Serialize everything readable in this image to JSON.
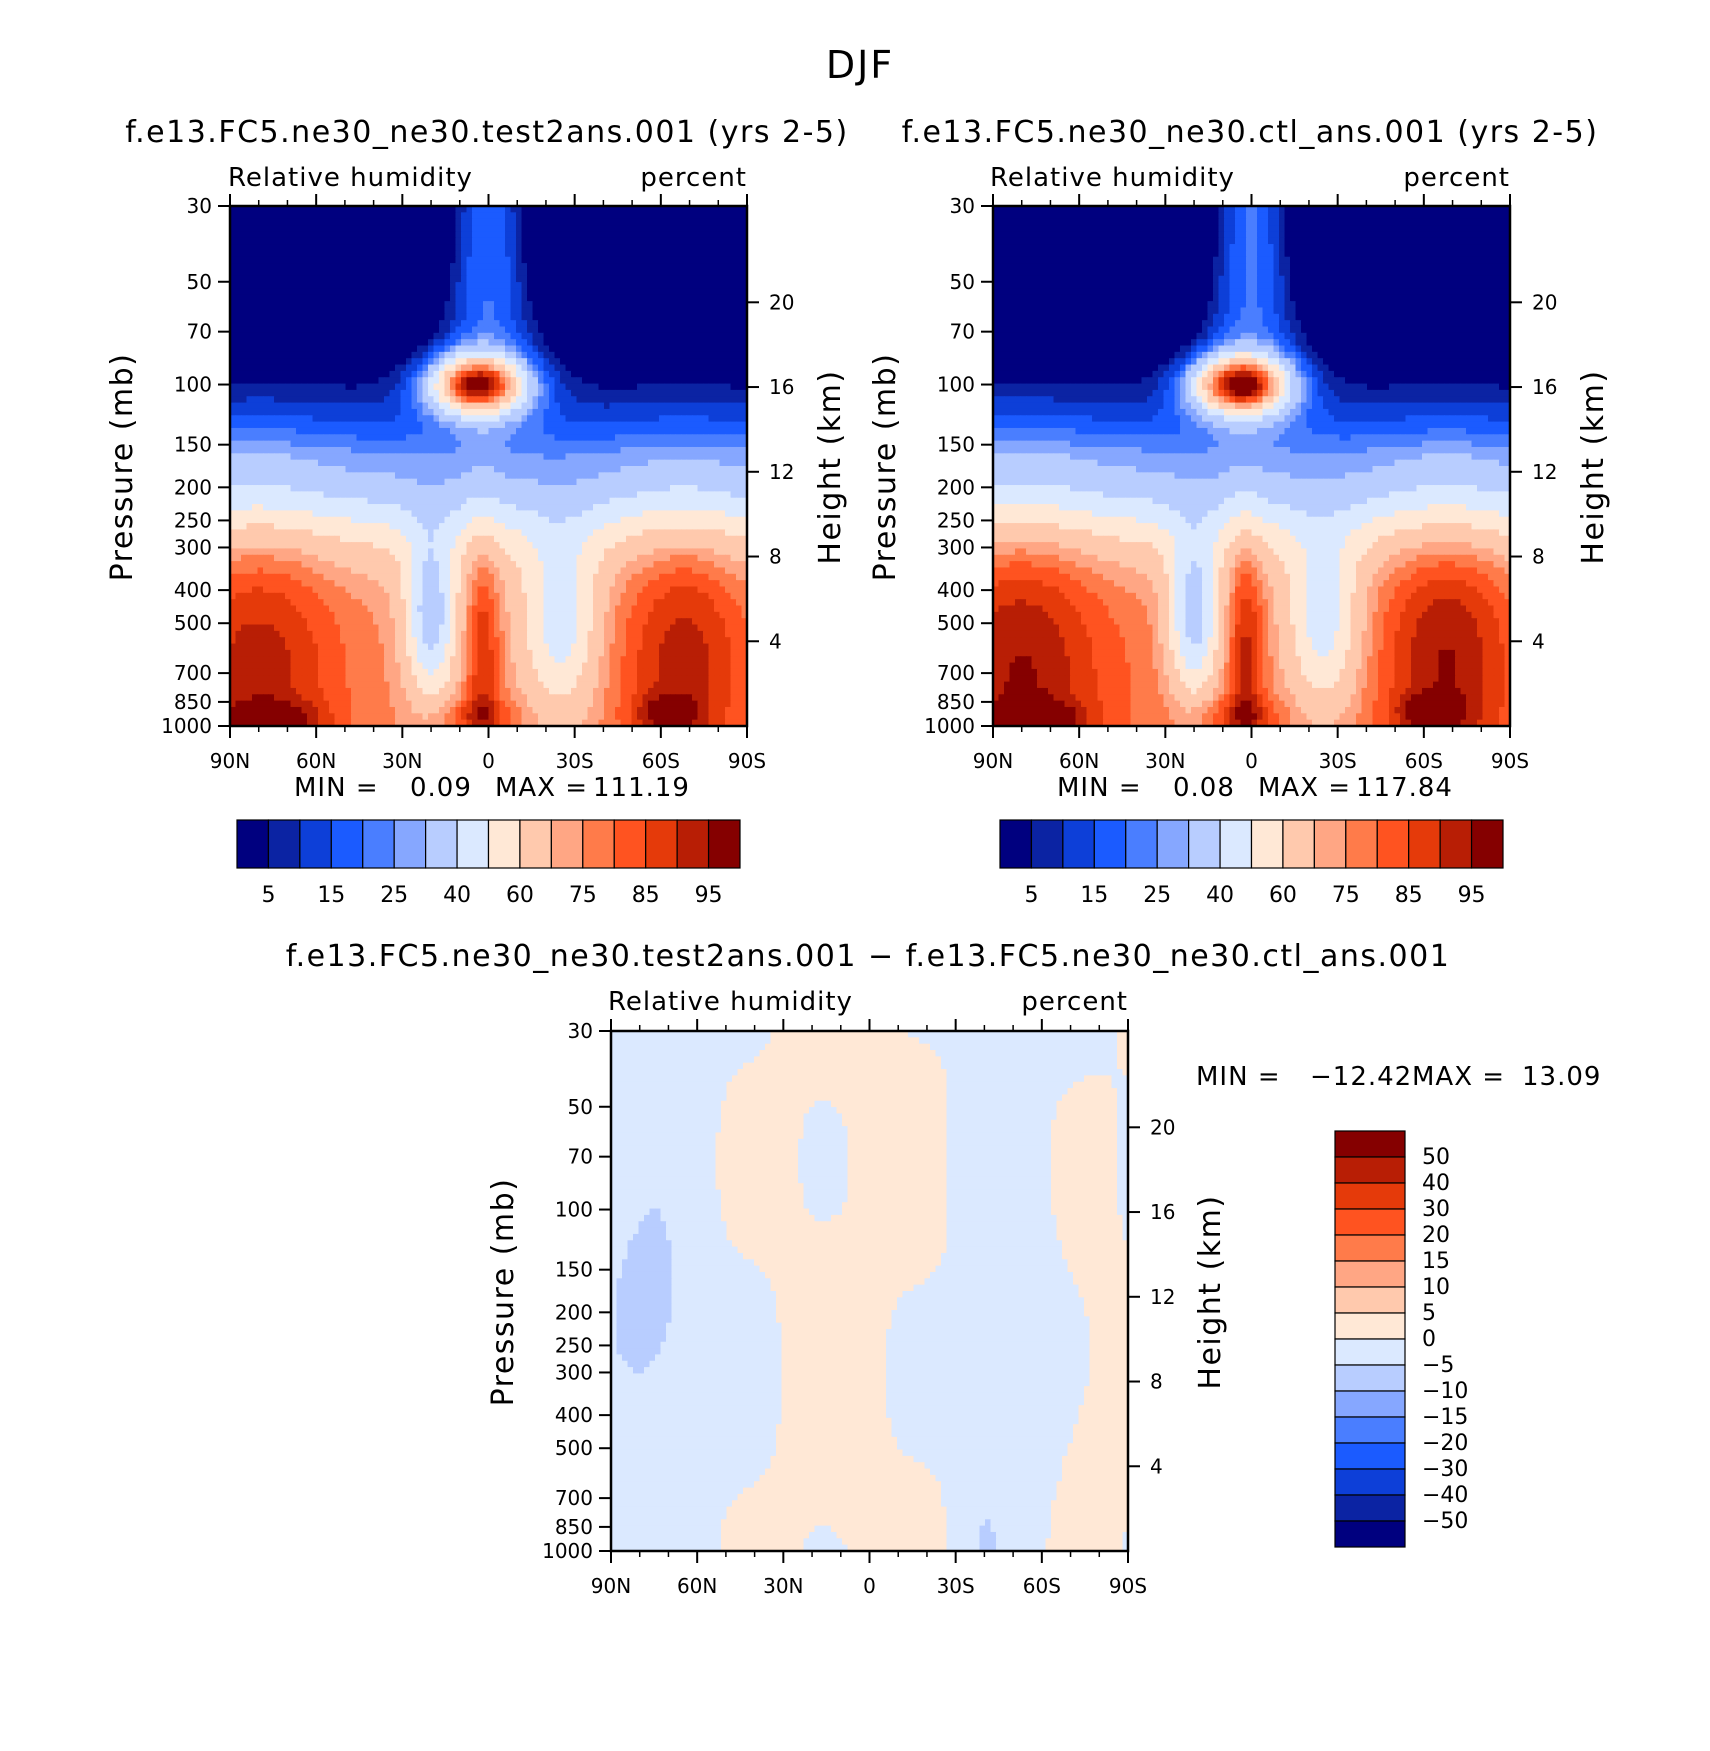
{
  "figure": {
    "title": "DJF"
  },
  "chart_data": [
    {
      "type": "heatmap",
      "id": "test",
      "title": "f.e13.FC5.ne30_ne30.test2ans.001 (yrs 2-5)",
      "left_subtitle": "Relative humidity",
      "right_subtitle": "percent",
      "ylabel": "Pressure (mb)",
      "ylabel_right": "Height (km)",
      "x_ticks": [
        "90N",
        "60N",
        "30N",
        "0",
        "30S",
        "60S",
        "90S"
      ],
      "x_range": [
        90,
        -90
      ],
      "y_ticks": [
        30,
        50,
        70,
        100,
        150,
        200,
        250,
        300,
        400,
        500,
        700,
        850,
        1000
      ],
      "y_range": [
        30,
        1000
      ],
      "height_ticks": [
        20,
        16,
        12,
        8,
        4
      ],
      "stats": {
        "min_label": "MIN =",
        "min": "0.09",
        "max_label": "MAX =",
        "max": "111.19"
      },
      "field_max": 111.19,
      "field_min": 0.09
    },
    {
      "type": "heatmap",
      "id": "ctl",
      "title": "f.e13.FC5.ne30_ne30.ctl_ans.001 (yrs 2-5)",
      "left_subtitle": "Relative humidity",
      "right_subtitle": "percent",
      "ylabel": "Pressure (mb)",
      "ylabel_right": "Height (km)",
      "x_ticks": [
        "90N",
        "60N",
        "30N",
        "0",
        "30S",
        "60S",
        "90S"
      ],
      "x_range": [
        90,
        -90
      ],
      "y_ticks": [
        30,
        50,
        70,
        100,
        150,
        200,
        250,
        300,
        400,
        500,
        700,
        850,
        1000
      ],
      "y_range": [
        30,
        1000
      ],
      "height_ticks": [
        20,
        16,
        12,
        8,
        4
      ],
      "stats": {
        "min_label": "MIN =",
        "min": "0.08",
        "max_label": "MAX =",
        "max": "117.84"
      },
      "field_max": 117.84,
      "field_min": 0.08
    },
    {
      "type": "heatmap",
      "id": "diff",
      "title": "f.e13.FC5.ne30_ne30.test2ans.001 − f.e13.FC5.ne30_ne30.ctl_ans.001",
      "left_subtitle": "Relative humidity",
      "right_subtitle": "percent",
      "ylabel": "Pressure (mb)",
      "ylabel_right": "Height (km)",
      "x_ticks": [
        "90N",
        "60N",
        "30N",
        "0",
        "30S",
        "60S",
        "90S"
      ],
      "x_range": [
        90,
        -90
      ],
      "y_ticks": [
        30,
        50,
        70,
        100,
        150,
        200,
        250,
        300,
        400,
        500,
        700,
        850,
        1000
      ],
      "y_range": [
        30,
        1000
      ],
      "height_ticks": [
        20,
        16,
        12,
        8,
        4
      ],
      "stats": {
        "min_label": "MIN =",
        "min": "−12.42",
        "max_label": "MAX =",
        "max": "13.09"
      },
      "field_min": -12.42,
      "field_max": 13.09
    }
  ],
  "colorbars": {
    "rh": {
      "colors": [
        "#00007f",
        "#0b23a3",
        "#0d3fd8",
        "#1b5bff",
        "#4a7eff",
        "#86a7ff",
        "#b8cdff",
        "#dbe9ff",
        "#ffe8d6",
        "#ffc9ad",
        "#ffa684",
        "#ff7b4a",
        "#ff5320",
        "#e53a0a",
        "#b81e05",
        "#850000"
      ],
      "labels": [
        "5",
        "15",
        "25",
        "40",
        "60",
        "75",
        "85",
        "95"
      ],
      "levels": [
        5,
        10,
        15,
        20,
        25,
        30,
        40,
        50,
        60,
        70,
        75,
        80,
        85,
        90,
        95
      ]
    },
    "diff": {
      "colors": [
        "#00007f",
        "#0b23a3",
        "#0d3fd8",
        "#1b5bff",
        "#4a7eff",
        "#86a7ff",
        "#b8cdff",
        "#dbe9ff",
        "#ffe8d6",
        "#ffc9ad",
        "#ffa684",
        "#ff7b4a",
        "#ff5320",
        "#e53a0a",
        "#b81e05",
        "#850000"
      ],
      "labels": [
        "50",
        "40",
        "30",
        "20",
        "15",
        "10",
        "5",
        "0",
        "−5",
        "−10",
        "−15",
        "−20",
        "−30",
        "−40",
        "−50"
      ],
      "levels": [
        -50,
        -40,
        -30,
        -20,
        -15,
        -10,
        -5,
        0,
        5,
        10,
        15,
        20,
        30,
        40,
        50
      ]
    }
  }
}
